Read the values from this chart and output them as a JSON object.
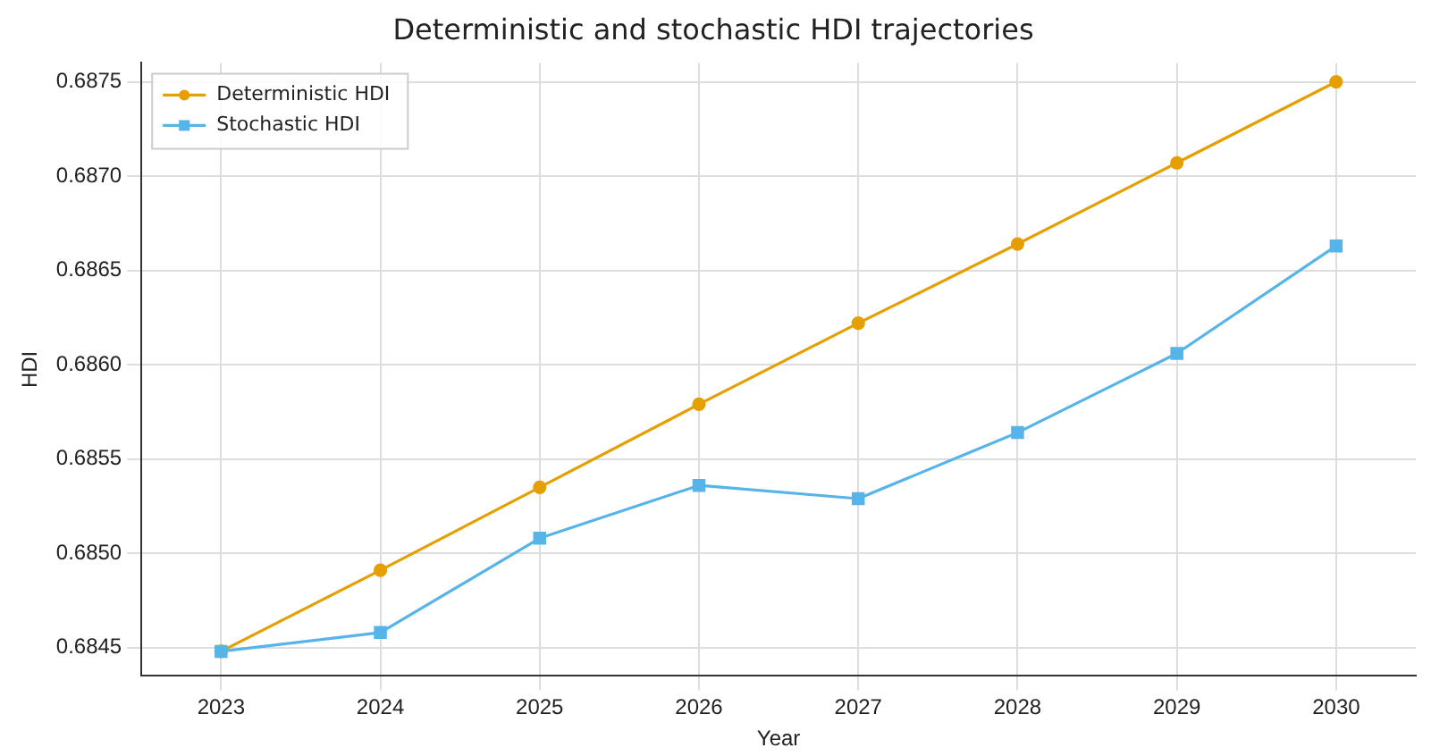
{
  "chart_data": {
    "type": "line",
    "title": "Deterministic and stochastic HDI trajectories",
    "xlabel": "Year",
    "ylabel": "HDI",
    "categories": [
      "2023",
      "2024",
      "2025",
      "2026",
      "2027",
      "2028",
      "2029",
      "2030"
    ],
    "series": [
      {
        "name": "Deterministic HDI",
        "color": "#e69f00",
        "marker": "circle",
        "values": [
          0.68448,
          0.68491,
          0.68535,
          0.68579,
          0.68622,
          0.68664,
          0.68707,
          0.6875
        ]
      },
      {
        "name": "Stochastic HDI",
        "color": "#56b4e9",
        "marker": "square",
        "values": [
          0.68448,
          0.68458,
          0.68508,
          0.68536,
          0.68529,
          0.68564,
          0.68606,
          0.68663
        ]
      }
    ],
    "ylim": [
      0.68435,
      0.6876
    ],
    "yticks": [
      {
        "value": 0.6845,
        "label": "0.6845"
      },
      {
        "value": 0.685,
        "label": "0.6850"
      },
      {
        "value": 0.6855,
        "label": "0.6855"
      },
      {
        "value": 0.686,
        "label": "0.6860"
      },
      {
        "value": 0.6865,
        "label": "0.6865"
      },
      {
        "value": 0.687,
        "label": "0.6870"
      },
      {
        "value": 0.6875,
        "label": "0.6875"
      }
    ],
    "grid": true,
    "legend": "top left",
    "line_style": "solid"
  }
}
